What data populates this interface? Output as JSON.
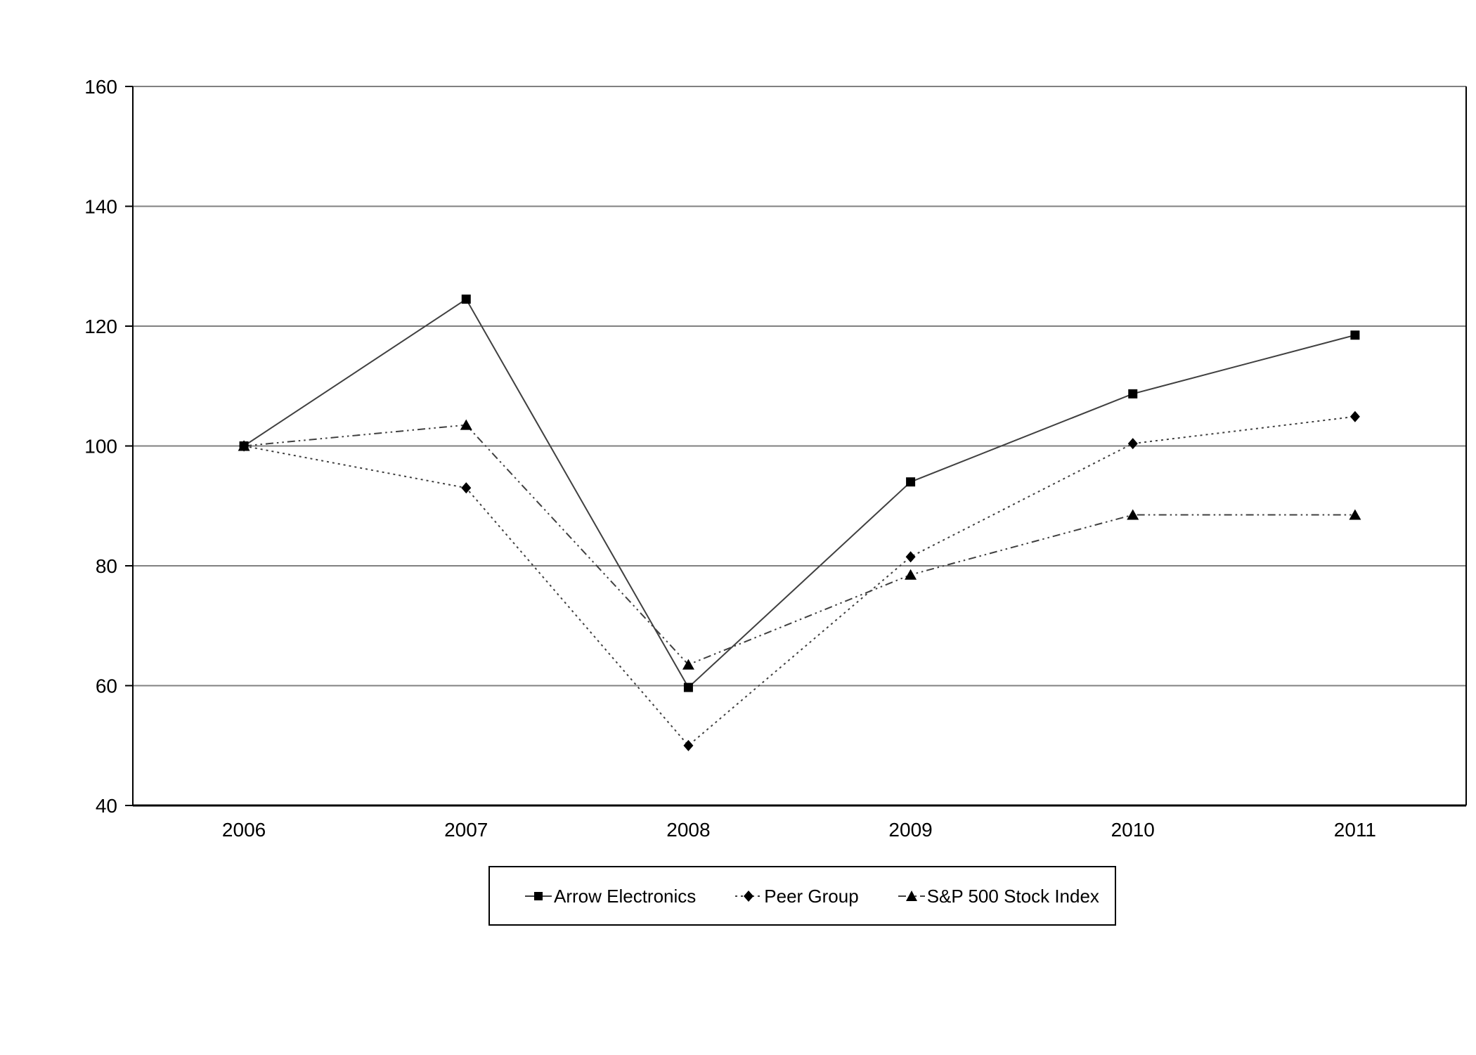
{
  "page": {
    "background_color": "#ffffff"
  },
  "chart_data": {
    "type": "line",
    "title": "",
    "xlabel": "",
    "ylabel": "",
    "categories": [
      "2006",
      "2007",
      "2008",
      "2009",
      "2010",
      "2011"
    ],
    "series": [
      {
        "name": "Arrow Electronics",
        "values": [
          100,
          124.5,
          59.7,
          94.0,
          108.7,
          118.5
        ],
        "line_style": "solid",
        "marker": "square"
      },
      {
        "name": "Peer Group",
        "values": [
          100,
          93.0,
          50.0,
          81.5,
          100.4,
          104.9
        ],
        "line_style": "dotted",
        "marker": "diamond"
      },
      {
        "name": "S&P 500 Stock Index",
        "values": [
          100,
          103.5,
          63.5,
          78.5,
          88.5,
          88.5
        ],
        "line_style": "dash-dot-dot",
        "marker": "triangle"
      }
    ],
    "ylim": [
      40,
      160
    ],
    "ytick_step": 20,
    "ytick_labels": [
      "40",
      "60",
      "80",
      "100",
      "120",
      "140",
      "160"
    ],
    "grid": true,
    "legend_position": "bottom",
    "colors": {
      "series_line": "#404040",
      "marker": "#000000",
      "gridline": "#808080",
      "axis": "#000000",
      "text": "#000000"
    }
  }
}
